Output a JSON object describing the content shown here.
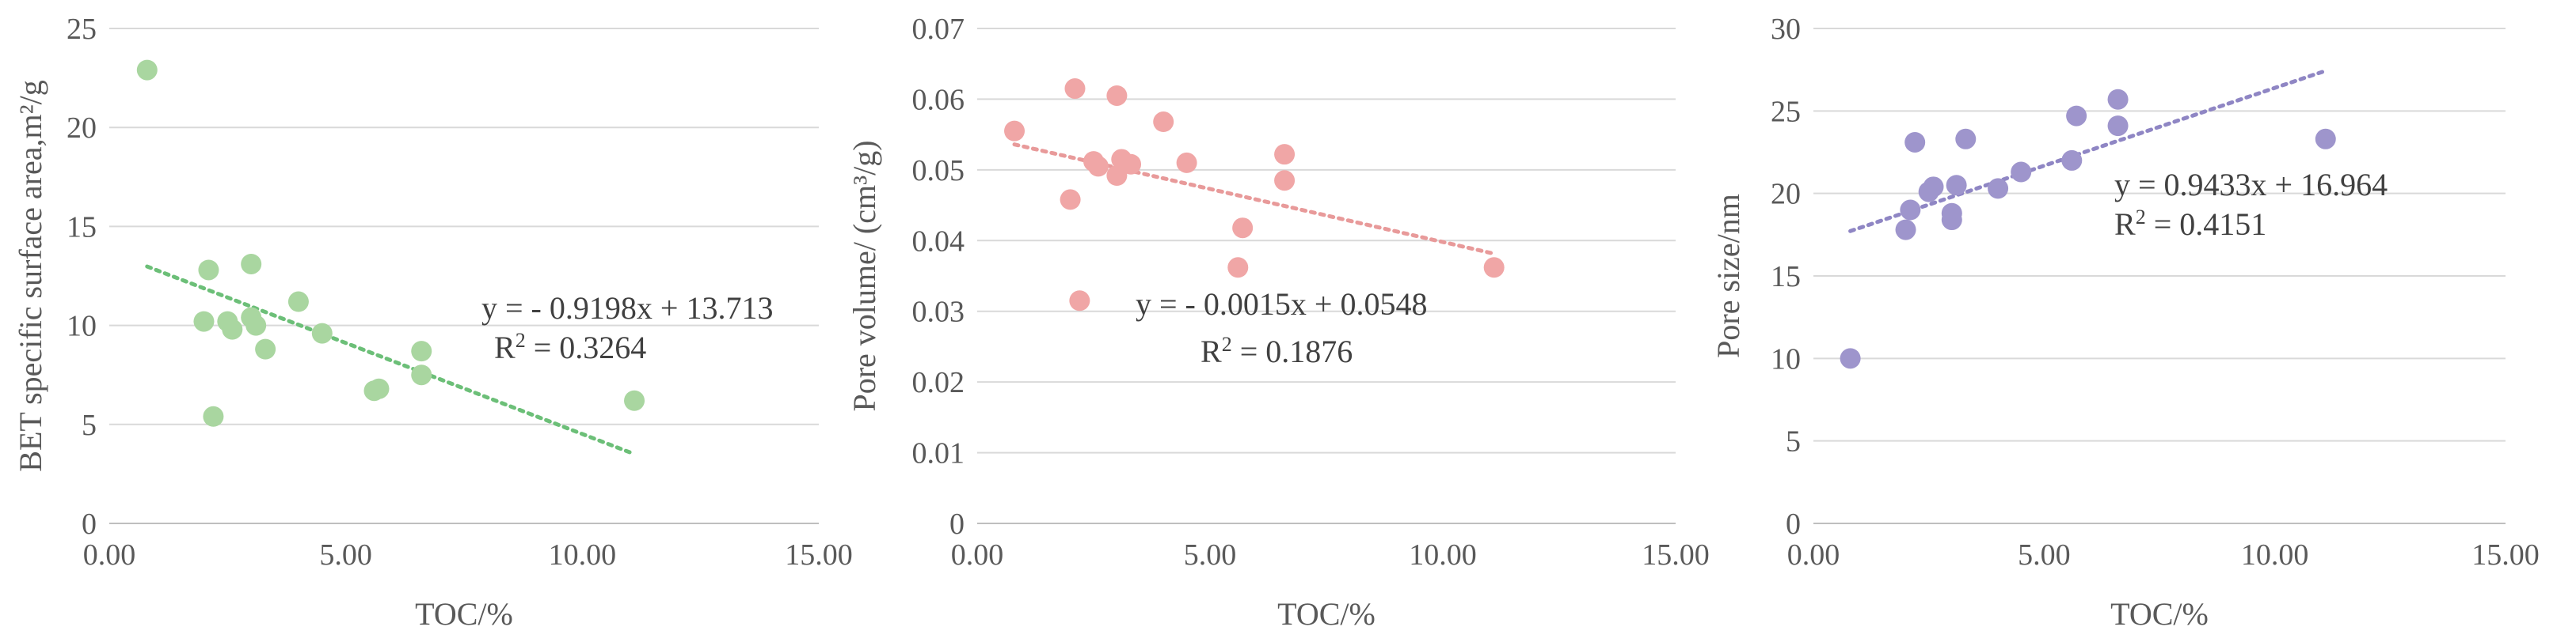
{
  "chart_data": [
    {
      "type": "scatter",
      "xlabel": "TOC/%",
      "ylabel": "BET specific surface area,m²/g",
      "xlim": [
        0,
        15
      ],
      "ylim": [
        0,
        25
      ],
      "xticks": [
        "0.00",
        "5.00",
        "10.00",
        "15.00"
      ],
      "yticks": [
        "0",
        "5",
        "10",
        "15",
        "20",
        "25"
      ],
      "x_ticks": [
        0,
        5,
        10,
        15
      ],
      "y_ticks": [
        0,
        5,
        10,
        15,
        20,
        25
      ],
      "grid": "horizontal",
      "color": "#a9d6a0",
      "trend_color": "#6cbf78",
      "points": [
        {
          "x": 0.8,
          "y": 22.9
        },
        {
          "x": 2.0,
          "y": 10.2
        },
        {
          "x": 2.1,
          "y": 12.8
        },
        {
          "x": 2.2,
          "y": 5.4
        },
        {
          "x": 2.5,
          "y": 10.2
        },
        {
          "x": 2.6,
          "y": 9.8
        },
        {
          "x": 3.0,
          "y": 13.1
        },
        {
          "x": 3.0,
          "y": 10.4
        },
        {
          "x": 3.1,
          "y": 10.0
        },
        {
          "x": 3.3,
          "y": 8.8
        },
        {
          "x": 4.0,
          "y": 11.2
        },
        {
          "x": 4.5,
          "y": 9.6
        },
        {
          "x": 5.6,
          "y": 6.7
        },
        {
          "x": 5.7,
          "y": 6.8
        },
        {
          "x": 6.6,
          "y": 8.7
        },
        {
          "x": 6.6,
          "y": 7.5
        },
        {
          "x": 11.1,
          "y": 6.2
        }
      ],
      "trendline": {
        "slope": -0.9198,
        "intercept": 13.713,
        "x_range": [
          0.8,
          11.1
        ]
      },
      "equation": "y = - 0.9198x + 13.713",
      "r2_label": "R",
      "r2_value": " = 0.3264"
    },
    {
      "type": "scatter",
      "xlabel": "TOC/%",
      "ylabel": "Pore volume/ (cm³/g)",
      "xlim": [
        0,
        15
      ],
      "ylim": [
        0,
        0.07
      ],
      "xticks": [
        "0.00",
        "5.00",
        "10.00",
        "15.00"
      ],
      "yticks": [
        "0",
        "0.01",
        "0.02",
        "0.03",
        "0.04",
        "0.05",
        "0.06",
        "0.07"
      ],
      "x_ticks": [
        0,
        5,
        10,
        15
      ],
      "y_ticks": [
        0,
        0.01,
        0.02,
        0.03,
        0.04,
        0.05,
        0.06,
        0.07
      ],
      "grid": "horizontal",
      "color": "#f0a6a6",
      "trend_color": "#e89a9a",
      "points": [
        {
          "x": 0.8,
          "y": 0.0555
        },
        {
          "x": 2.0,
          "y": 0.0458
        },
        {
          "x": 2.1,
          "y": 0.0615
        },
        {
          "x": 2.2,
          "y": 0.0315
        },
        {
          "x": 2.5,
          "y": 0.0512
        },
        {
          "x": 2.6,
          "y": 0.0505
        },
        {
          "x": 3.0,
          "y": 0.0605
        },
        {
          "x": 3.0,
          "y": 0.0492
        },
        {
          "x": 3.1,
          "y": 0.0515
        },
        {
          "x": 3.3,
          "y": 0.0508
        },
        {
          "x": 4.0,
          "y": 0.0568
        },
        {
          "x": 4.5,
          "y": 0.051
        },
        {
          "x": 5.6,
          "y": 0.0362
        },
        {
          "x": 5.7,
          "y": 0.0418
        },
        {
          "x": 6.6,
          "y": 0.0522
        },
        {
          "x": 6.6,
          "y": 0.0485
        },
        {
          "x": 11.1,
          "y": 0.0362
        }
      ],
      "trendline": {
        "slope": -0.0015,
        "intercept": 0.0548,
        "x_range": [
          0.8,
          11.1
        ]
      },
      "equation": "y = - 0.0015x + 0.0548",
      "r2_label": "R",
      "r2_value": " = 0.1876"
    },
    {
      "type": "scatter",
      "xlabel": "TOC/%",
      "ylabel": "Pore size/nm",
      "xlim": [
        0,
        15
      ],
      "ylim": [
        0,
        30
      ],
      "xticks": [
        "0.00",
        "5.00",
        "10.00",
        "15.00"
      ],
      "yticks": [
        "0",
        "5",
        "10",
        "15",
        "20",
        "25",
        "30"
      ],
      "x_ticks": [
        0,
        5,
        10,
        15
      ],
      "y_ticks": [
        0,
        5,
        10,
        15,
        20,
        25,
        30
      ],
      "grid": "horizontal",
      "color": "#9e95cc",
      "trend_color": "#8f86c4",
      "points": [
        {
          "x": 0.8,
          "y": 10.0
        },
        {
          "x": 2.0,
          "y": 17.8
        },
        {
          "x": 2.1,
          "y": 19.0
        },
        {
          "x": 2.2,
          "y": 23.1
        },
        {
          "x": 2.5,
          "y": 20.1
        },
        {
          "x": 2.6,
          "y": 20.4
        },
        {
          "x": 3.0,
          "y": 18.8
        },
        {
          "x": 3.0,
          "y": 18.4
        },
        {
          "x": 3.1,
          "y": 20.5
        },
        {
          "x": 3.3,
          "y": 23.3
        },
        {
          "x": 4.0,
          "y": 20.3
        },
        {
          "x": 4.5,
          "y": 21.3
        },
        {
          "x": 5.6,
          "y": 22.0
        },
        {
          "x": 5.7,
          "y": 24.7
        },
        {
          "x": 6.6,
          "y": 25.7
        },
        {
          "x": 6.6,
          "y": 24.1
        },
        {
          "x": 11.1,
          "y": 23.3
        }
      ],
      "trendline": {
        "slope": 0.9433,
        "intercept": 16.964,
        "x_range": [
          0.8,
          11.1
        ]
      },
      "equation": "y = 0.9433x + 16.964",
      "r2_label": "R",
      "r2_value": " = 0.4151"
    }
  ]
}
